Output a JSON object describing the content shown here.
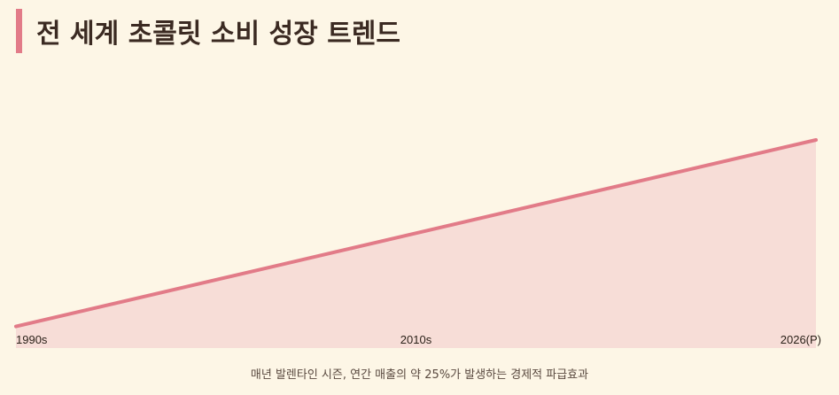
{
  "header": {
    "title": "전 세계 초콜릿 소비 성장 트렌드"
  },
  "footer": {
    "caption": "매년 발렌타인 시즌, 연간 매출의 약 25%가 발생하는 경제적 파급효과"
  },
  "colors": {
    "accent": "#e27b88",
    "area_fill": "#f7ddd7",
    "background": "#fdf6e6"
  },
  "chart_data": {
    "type": "area",
    "x_tick_labels": [
      "1990s",
      "2010s",
      "2026(P)"
    ],
    "x": [
      0,
      1,
      2,
      3
    ],
    "values": [
      10,
      40,
      70,
      100
    ],
    "ylim": [
      0,
      100
    ],
    "grid": false
  }
}
